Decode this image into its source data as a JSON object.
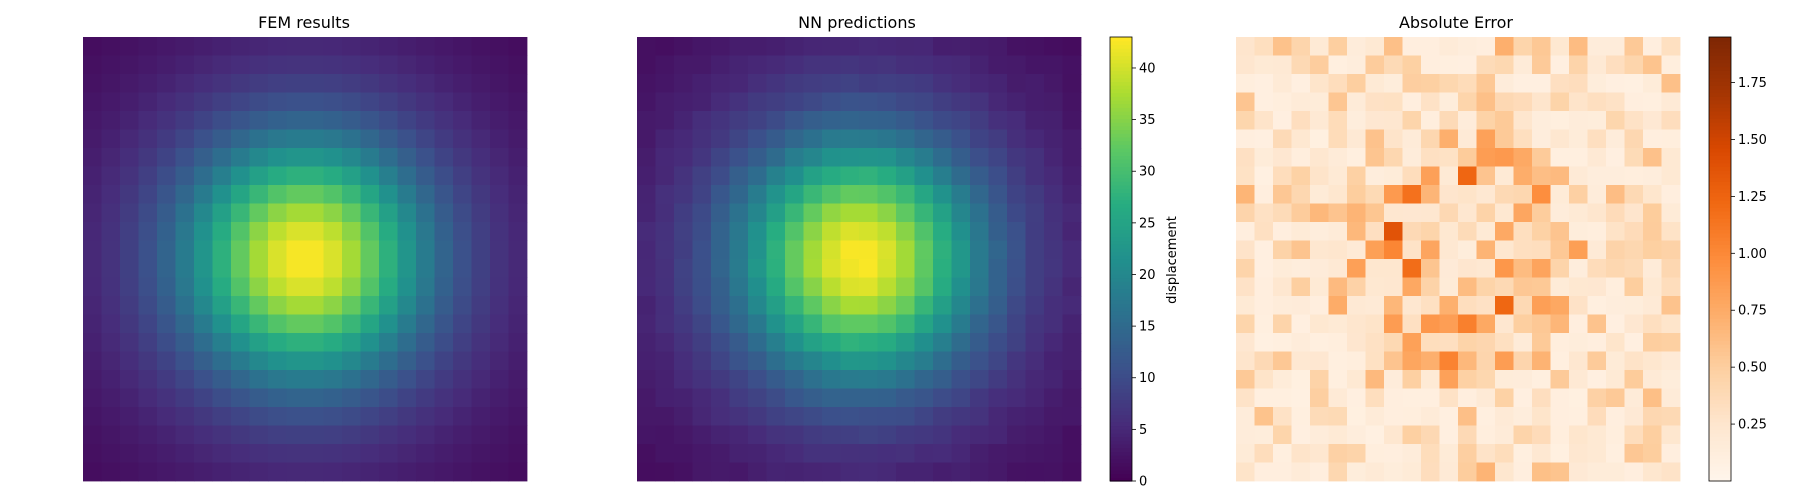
{
  "chart_data": [
    {
      "type": "heatmap",
      "title": "FEM results",
      "grid_size": 24,
      "colormap": "viridis",
      "value_range": [
        0,
        43
      ],
      "axes_visible": false,
      "field": "sum of two Gaussian bumps centered on the grid: amplitude 31 (sigma 4.2 cells) plus amplitude 12 (sigma 8 cells); values near 0 in the four corners, maximum ~43 at the center"
    },
    {
      "type": "heatmap",
      "title": "NN predictions",
      "grid_size": 24,
      "colormap": "viridis",
      "value_range": [
        0,
        43
      ],
      "axes_visible": false,
      "colorbar": {
        "label": "displacement",
        "ticks": [
          "0",
          "5",
          "10",
          "15",
          "20",
          "25",
          "30",
          "35",
          "40"
        ]
      }
    },
    {
      "type": "heatmap",
      "title": "Absolute Error",
      "grid_size": 24,
      "colormap": "Oranges",
      "value_range": [
        0,
        1.95
      ],
      "axes_visible": false,
      "colorbar": {
        "ticks": [
          "0.25",
          "0.50",
          "0.75",
          "1.00",
          "1.25",
          "1.50",
          "1.75"
        ]
      }
    }
  ]
}
